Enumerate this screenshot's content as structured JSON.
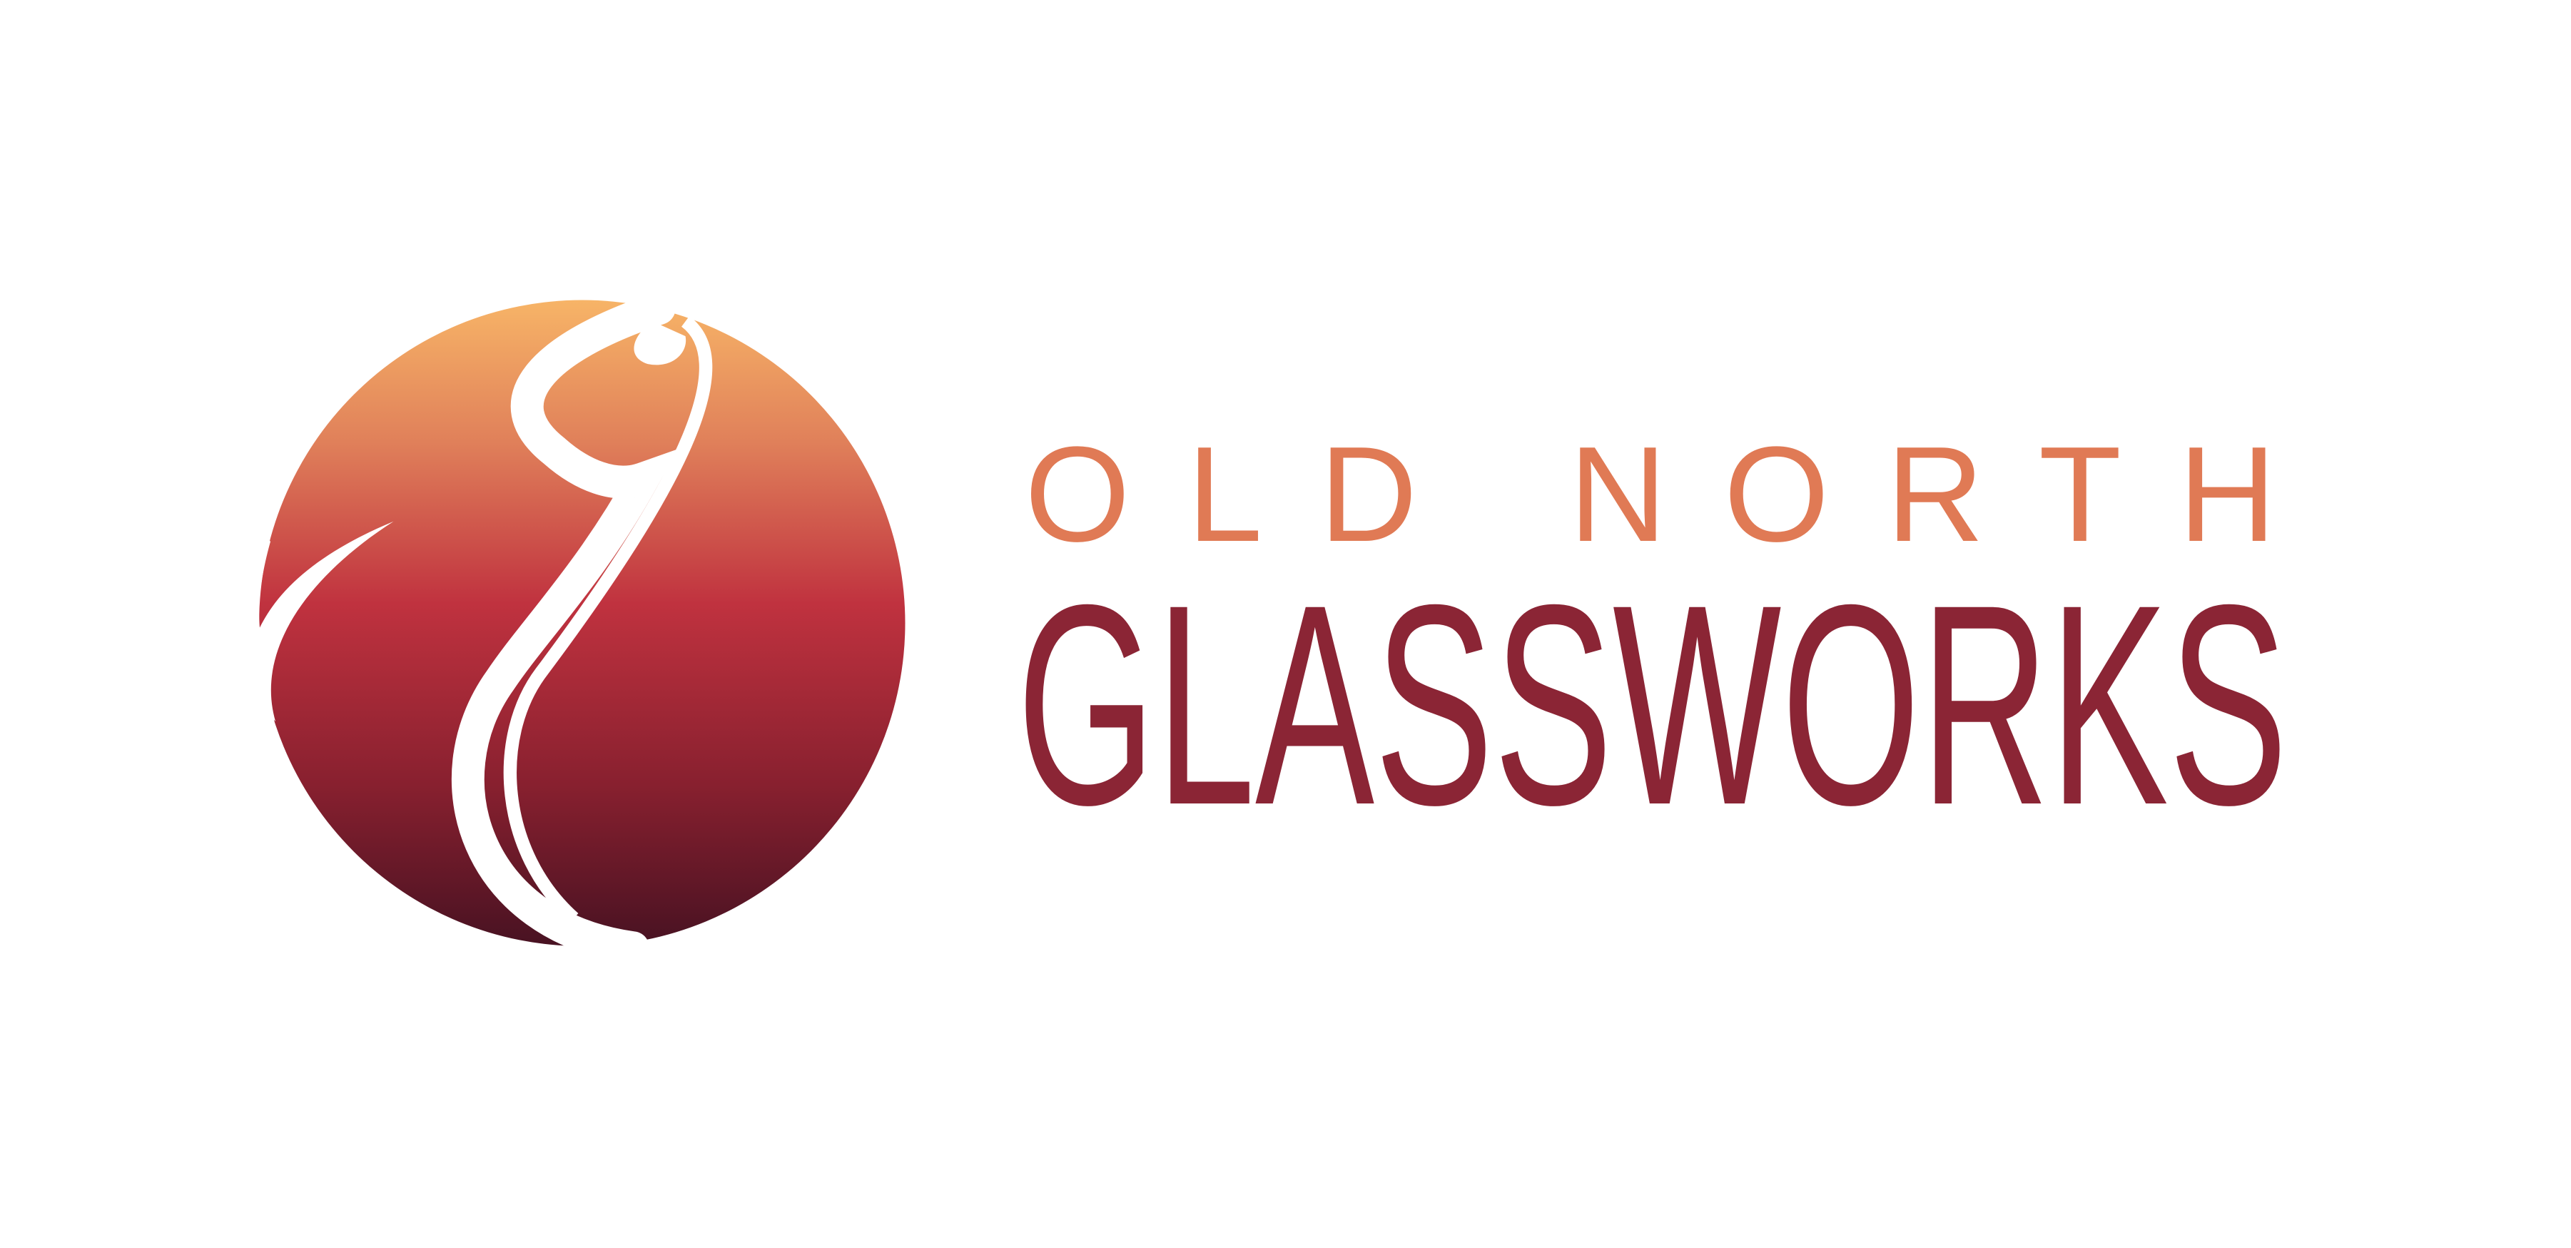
{
  "logo": {
    "line1": "OLD NORTH",
    "line2": "GLASSWORKS"
  }
}
